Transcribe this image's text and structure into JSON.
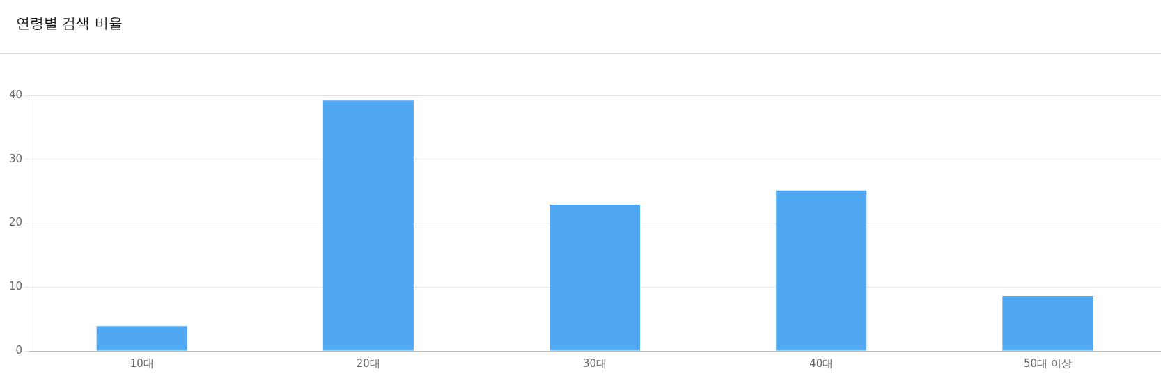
{
  "chart_data": {
    "type": "bar",
    "title": "연령별 검색 비율",
    "categories": [
      "10대",
      "20대",
      "30대",
      "40대",
      "50대 이상"
    ],
    "values": [
      3.9,
      39.2,
      22.9,
      25.1,
      8.6
    ],
    "color": "#51a8f2",
    "ylim": [
      0,
      40
    ],
    "yticks": [
      0,
      10,
      20,
      30,
      40
    ],
    "grid": "y",
    "legend": false
  }
}
